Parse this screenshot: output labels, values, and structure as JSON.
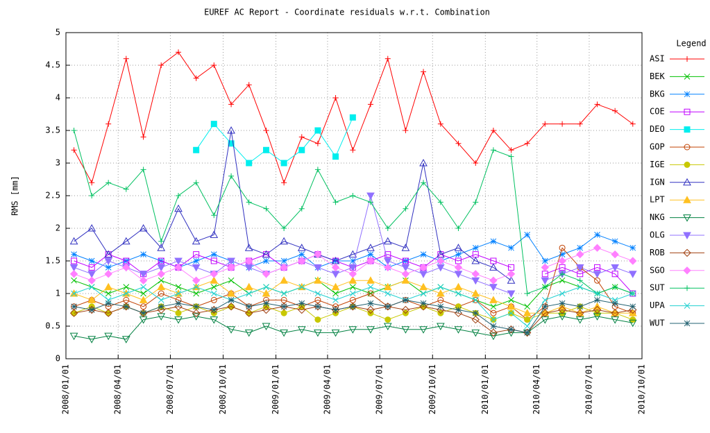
{
  "chart_data": {
    "type": "line",
    "title": "EUREF AC Report - Coordinate residuals w.r.t. Combination",
    "y_label": "RMS [mm]",
    "legend_title": "Legend",
    "legend": "outside-right",
    "grid": true,
    "ylim": [
      0,
      5
    ],
    "yticks": [
      0,
      0.5,
      1,
      1.5,
      2,
      2.5,
      3,
      3.5,
      4,
      4.5,
      5
    ],
    "xlim": [
      "2008/01/01",
      "2010/10/01"
    ],
    "xticks": [
      "2008/01/01",
      "2008/04/01",
      "2008/07/01",
      "2008/10/01",
      "2009/01/01",
      "2009/04/01",
      "2009/07/01",
      "2009/10/01",
      "2010/01/01",
      "2010/04/01",
      "2010/07/01",
      "2010/10/01"
    ],
    "x": [
      "2008/01/15",
      "2008/02/15",
      "2008/03/15",
      "2008/04/15",
      "2008/05/15",
      "2008/06/15",
      "2008/07/15",
      "2008/08/15",
      "2008/09/15",
      "2008/10/15",
      "2008/11/15",
      "2008/12/15",
      "2009/01/15",
      "2009/02/15",
      "2009/03/15",
      "2009/04/15",
      "2009/05/15",
      "2009/06/15",
      "2009/07/15",
      "2009/08/15",
      "2009/09/15",
      "2009/10/15",
      "2009/11/15",
      "2009/12/15",
      "2010/01/15",
      "2010/02/15",
      "2010/03/15",
      "2010/04/15",
      "2010/05/15",
      "2010/06/15",
      "2010/07/15",
      "2010/08/15",
      "2010/09/15"
    ],
    "series": [
      {
        "name": "ASI",
        "color": "#ff0000",
        "marker": "plus",
        "values": [
          3.2,
          2.7,
          3.6,
          4.6,
          3.4,
          4.5,
          4.7,
          4.3,
          4.5,
          3.9,
          4.2,
          3.5,
          2.7,
          3.4,
          3.3,
          4.0,
          3.2,
          3.9,
          4.6,
          3.5,
          4.4,
          3.6,
          3.3,
          3.0,
          3.5,
          3.2,
          3.3,
          3.6,
          3.6,
          3.6,
          3.9,
          3.8,
          3.6
        ]
      },
      {
        "name": "BEK",
        "color": "#00c000",
        "marker": "cross",
        "values": [
          1.2,
          1.1,
          1.0,
          1.1,
          1.0,
          1.2,
          1.1,
          1.0,
          1.1,
          1.2,
          1.0,
          1.1,
          1.0,
          1.1,
          1.2,
          1.0,
          1.1,
          1.0,
          1.1,
          1.2,
          1.0,
          1.1,
          1.0,
          0.9,
          0.8,
          0.9,
          0.8,
          1.1,
          1.2,
          1.1,
          1.0,
          1.1,
          1.0
        ]
      },
      {
        "name": "BKG",
        "color": "#0080ff",
        "marker": "star",
        "values": [
          1.6,
          1.5,
          1.4,
          1.5,
          1.6,
          1.5,
          1.4,
          1.5,
          1.6,
          1.5,
          1.4,
          1.5,
          1.5,
          1.6,
          1.4,
          1.5,
          1.5,
          1.6,
          1.4,
          1.5,
          1.6,
          1.5,
          1.6,
          1.7,
          1.8,
          1.7,
          1.9,
          1.5,
          1.6,
          1.7,
          1.9,
          1.8,
          1.7
        ]
      },
      {
        "name": "COE",
        "color": "#c000ff",
        "marker": "square",
        "values": [
          1.5,
          1.4,
          1.6,
          1.5,
          1.3,
          1.5,
          1.4,
          1.6,
          1.5,
          1.4,
          1.5,
          1.6,
          1.4,
          1.5,
          1.6,
          1.5,
          1.4,
          1.5,
          1.6,
          1.5,
          1.4,
          1.6,
          1.5,
          1.6,
          1.5,
          1.4,
          null,
          1.3,
          1.4,
          1.3,
          1.4,
          1.3,
          1.0
        ]
      },
      {
        "name": "DEO",
        "color": "#00eeee",
        "marker": "square-filled",
        "values": [
          null,
          null,
          null,
          null,
          null,
          null,
          null,
          3.2,
          3.6,
          3.3,
          3.0,
          3.2,
          3.0,
          3.2,
          3.5,
          3.1,
          3.7,
          null,
          null,
          null,
          null,
          null,
          null,
          null,
          null,
          null,
          null,
          null,
          null,
          null,
          null,
          null,
          null
        ]
      },
      {
        "name": "GOP",
        "color": "#c04000",
        "marker": "circle",
        "values": [
          0.8,
          0.9,
          0.8,
          0.9,
          0.8,
          1.0,
          0.9,
          0.8,
          0.9,
          1.0,
          0.8,
          0.9,
          0.9,
          0.8,
          0.9,
          0.8,
          0.9,
          1.0,
          0.8,
          0.9,
          0.8,
          0.9,
          0.8,
          0.9,
          0.7,
          0.8,
          0.6,
          0.8,
          1.7,
          1.4,
          1.2,
          0.8,
          0.7
        ]
      },
      {
        "name": "IGE",
        "color": "#c8c800",
        "marker": "circle-filled",
        "values": [
          0.7,
          0.8,
          0.7,
          0.8,
          0.7,
          0.8,
          0.7,
          0.8,
          0.7,
          0.8,
          0.7,
          0.8,
          0.7,
          0.8,
          0.6,
          0.7,
          0.8,
          0.7,
          0.6,
          0.7,
          0.8,
          0.7,
          0.8,
          0.7,
          0.6,
          0.7,
          0.6,
          0.7,
          0.7,
          0.8,
          0.7,
          0.7,
          0.6
        ]
      },
      {
        "name": "IGN",
        "color": "#3030c0",
        "marker": "triangle",
        "values": [
          1.8,
          2.0,
          1.6,
          1.8,
          2.0,
          1.7,
          2.3,
          1.8,
          1.9,
          3.5,
          1.7,
          1.6,
          1.8,
          1.7,
          1.6,
          1.5,
          1.6,
          1.7,
          1.8,
          1.7,
          3.0,
          1.6,
          1.7,
          1.5,
          1.4,
          1.2,
          null,
          null,
          null,
          null,
          null,
          null,
          null
        ]
      },
      {
        "name": "LPT",
        "color": "#ffc020",
        "marker": "triangle-filled",
        "values": [
          1.0,
          0.9,
          1.1,
          1.0,
          0.9,
          1.1,
          1.0,
          1.1,
          1.2,
          1.0,
          1.1,
          1.0,
          1.2,
          1.1,
          1.2,
          1.1,
          1.2,
          1.2,
          1.1,
          1.2,
          1.1,
          1.0,
          1.1,
          1.0,
          0.9,
          0.8,
          0.7,
          0.7,
          0.8,
          0.7,
          0.8,
          0.7,
          0.7
        ]
      },
      {
        "name": "NKG",
        "color": "#008040",
        "marker": "triangle-down",
        "values": [
          0.35,
          0.3,
          0.35,
          0.3,
          0.6,
          0.65,
          0.6,
          0.65,
          0.6,
          0.45,
          0.4,
          0.5,
          0.4,
          0.45,
          0.4,
          0.4,
          0.45,
          0.45,
          0.5,
          0.45,
          0.45,
          0.5,
          0.45,
          0.4,
          0.35,
          0.4,
          0.4,
          0.6,
          0.65,
          0.6,
          0.65,
          0.6,
          0.55
        ]
      },
      {
        "name": "OLG",
        "color": "#9070ff",
        "marker": "triangle-down-filled",
        "values": [
          1.4,
          1.3,
          1.5,
          1.4,
          1.3,
          1.4,
          1.5,
          1.4,
          1.3,
          1.5,
          1.4,
          1.3,
          1.4,
          1.5,
          1.4,
          1.3,
          1.4,
          2.5,
          1.5,
          1.4,
          1.3,
          1.4,
          1.3,
          1.2,
          1.1,
          1.0,
          null,
          1.2,
          1.3,
          1.4,
          1.3,
          1.4,
          1.3
        ]
      },
      {
        "name": "ROB",
        "color": "#a04010",
        "marker": "diamond",
        "values": [
          0.7,
          0.75,
          0.7,
          0.8,
          0.7,
          0.75,
          0.8,
          0.7,
          0.75,
          0.8,
          0.7,
          0.75,
          0.8,
          0.75,
          0.8,
          0.75,
          0.8,
          0.75,
          0.8,
          0.75,
          0.8,
          0.75,
          0.7,
          0.6,
          0.4,
          0.45,
          0.4,
          0.7,
          0.75,
          0.7,
          0.75,
          0.7,
          0.75
        ]
      },
      {
        "name": "SGO",
        "color": "#ff80ff",
        "marker": "diamond-filled",
        "values": [
          1.3,
          1.2,
          1.3,
          1.4,
          1.2,
          1.3,
          1.4,
          1.2,
          1.3,
          1.4,
          1.5,
          1.3,
          1.4,
          1.5,
          1.6,
          1.4,
          1.3,
          1.5,
          1.4,
          1.3,
          1.4,
          1.5,
          1.4,
          1.3,
          1.2,
          1.3,
          null,
          1.4,
          1.5,
          1.6,
          1.7,
          1.6,
          1.5
        ]
      },
      {
        "name": "SUT",
        "color": "#00c060",
        "marker": "plus",
        "values": [
          3.5,
          2.5,
          2.7,
          2.6,
          2.9,
          1.8,
          2.5,
          2.7,
          2.2,
          2.8,
          2.4,
          2.3,
          2.0,
          2.3,
          2.9,
          2.4,
          2.5,
          2.4,
          2.0,
          2.3,
          2.7,
          2.4,
          2.0,
          2.4,
          3.2,
          3.1,
          1.0,
          1.1,
          1.3,
          1.2,
          1.0,
          1.1,
          1.0
        ]
      },
      {
        "name": "UPA",
        "color": "#20d0d0",
        "marker": "cross",
        "values": [
          1.0,
          1.1,
          0.9,
          1.0,
          1.1,
          0.9,
          1.0,
          1.1,
          1.0,
          0.9,
          1.0,
          1.1,
          1.0,
          1.1,
          1.0,
          0.9,
          1.0,
          1.1,
          1.0,
          0.9,
          1.0,
          1.1,
          1.0,
          0.9,
          0.6,
          0.7,
          0.5,
          0.9,
          1.0,
          1.1,
          1.0,
          0.9,
          1.0
        ]
      },
      {
        "name": "WUT",
        "color": "#206070",
        "marker": "star",
        "values": [
          0.8,
          0.75,
          0.85,
          0.8,
          0.7,
          0.8,
          0.85,
          0.8,
          0.75,
          0.9,
          0.8,
          0.85,
          0.8,
          0.85,
          0.8,
          0.75,
          0.8,
          0.85,
          0.8,
          0.9,
          0.85,
          0.8,
          0.75,
          0.7,
          0.5,
          0.45,
          0.4,
          0.8,
          0.85,
          0.8,
          0.9,
          0.85,
          0.8
        ]
      }
    ]
  }
}
